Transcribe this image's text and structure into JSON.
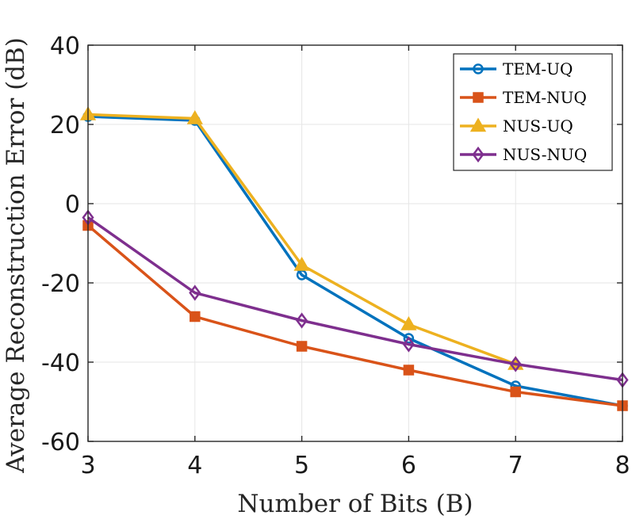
{
  "chart_data": {
    "type": "line",
    "xlabel": "Number of Bits (B)",
    "ylabel": "Average Reconstruction Error (dB)",
    "xlim": [
      3,
      8
    ],
    "ylim": [
      -60,
      40
    ],
    "xticks": [
      3,
      4,
      5,
      6,
      7,
      8
    ],
    "yticks": [
      -60,
      -40,
      -20,
      0,
      20,
      40
    ],
    "grid": true,
    "legend_position": "top-right",
    "x": [
      3,
      4,
      5,
      6,
      7,
      8
    ],
    "series": [
      {
        "name": "TEM-UQ",
        "color": "#0072BD",
        "marker": "circle",
        "values": [
          22.0,
          21.0,
          -18.0,
          -34.0,
          -46.0,
          -51.0
        ]
      },
      {
        "name": "TEM-NUQ",
        "color": "#D95319",
        "marker": "square",
        "values": [
          -5.5,
          -28.5,
          -36.0,
          -42.0,
          -47.5,
          -51.0
        ]
      },
      {
        "name": "NUS-UQ",
        "color": "#EDB120",
        "marker": "triangle",
        "values": [
          22.5,
          21.5,
          -15.5,
          -30.5,
          -40.5,
          null
        ]
      },
      {
        "name": "NUS-NUQ",
        "color": "#7E2F8E",
        "marker": "diamond",
        "values": [
          -3.5,
          -22.5,
          -29.5,
          -35.5,
          -40.5,
          -44.5
        ]
      }
    ]
  }
}
